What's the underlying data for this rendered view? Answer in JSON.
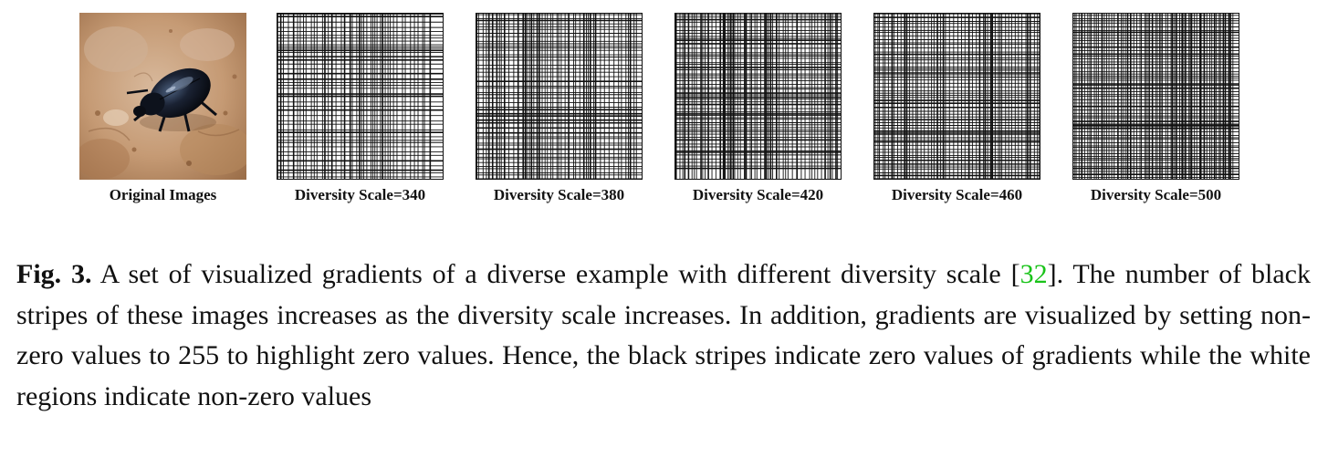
{
  "figure": {
    "panels": [
      {
        "label": "Original Images",
        "kind": "photo",
        "subject": "beetle-on-bark"
      },
      {
        "label": "Diversity Scale=340",
        "kind": "gradient",
        "stripe_density": 340
      },
      {
        "label": "Diversity Scale=380",
        "kind": "gradient",
        "stripe_density": 380
      },
      {
        "label": "Diversity Scale=420",
        "kind": "gradient",
        "stripe_density": 420
      },
      {
        "label": "Diversity Scale=460",
        "kind": "gradient",
        "stripe_density": 460
      },
      {
        "label": "Diversity Scale=500",
        "kind": "gradient",
        "stripe_density": 500
      }
    ]
  },
  "caption": {
    "label": "Fig. 3.",
    "text_before_cite": "A set of visualized gradients of a diverse example with different diversity scale",
    "cite_open": "[",
    "cite_number": "32",
    "cite_close": "]",
    "text_after_cite": ". The number of black stripes of these images increases as the diversity scale increases. In addition, gradients are visualized by setting non-zero values to 255 to highlight zero values. Hence, the black stripes indicate zero values of gradients while the white regions indicate non-zero values"
  },
  "colors": {
    "citation": "#19c319",
    "stripe": "#111111",
    "background": "#ffffff"
  }
}
